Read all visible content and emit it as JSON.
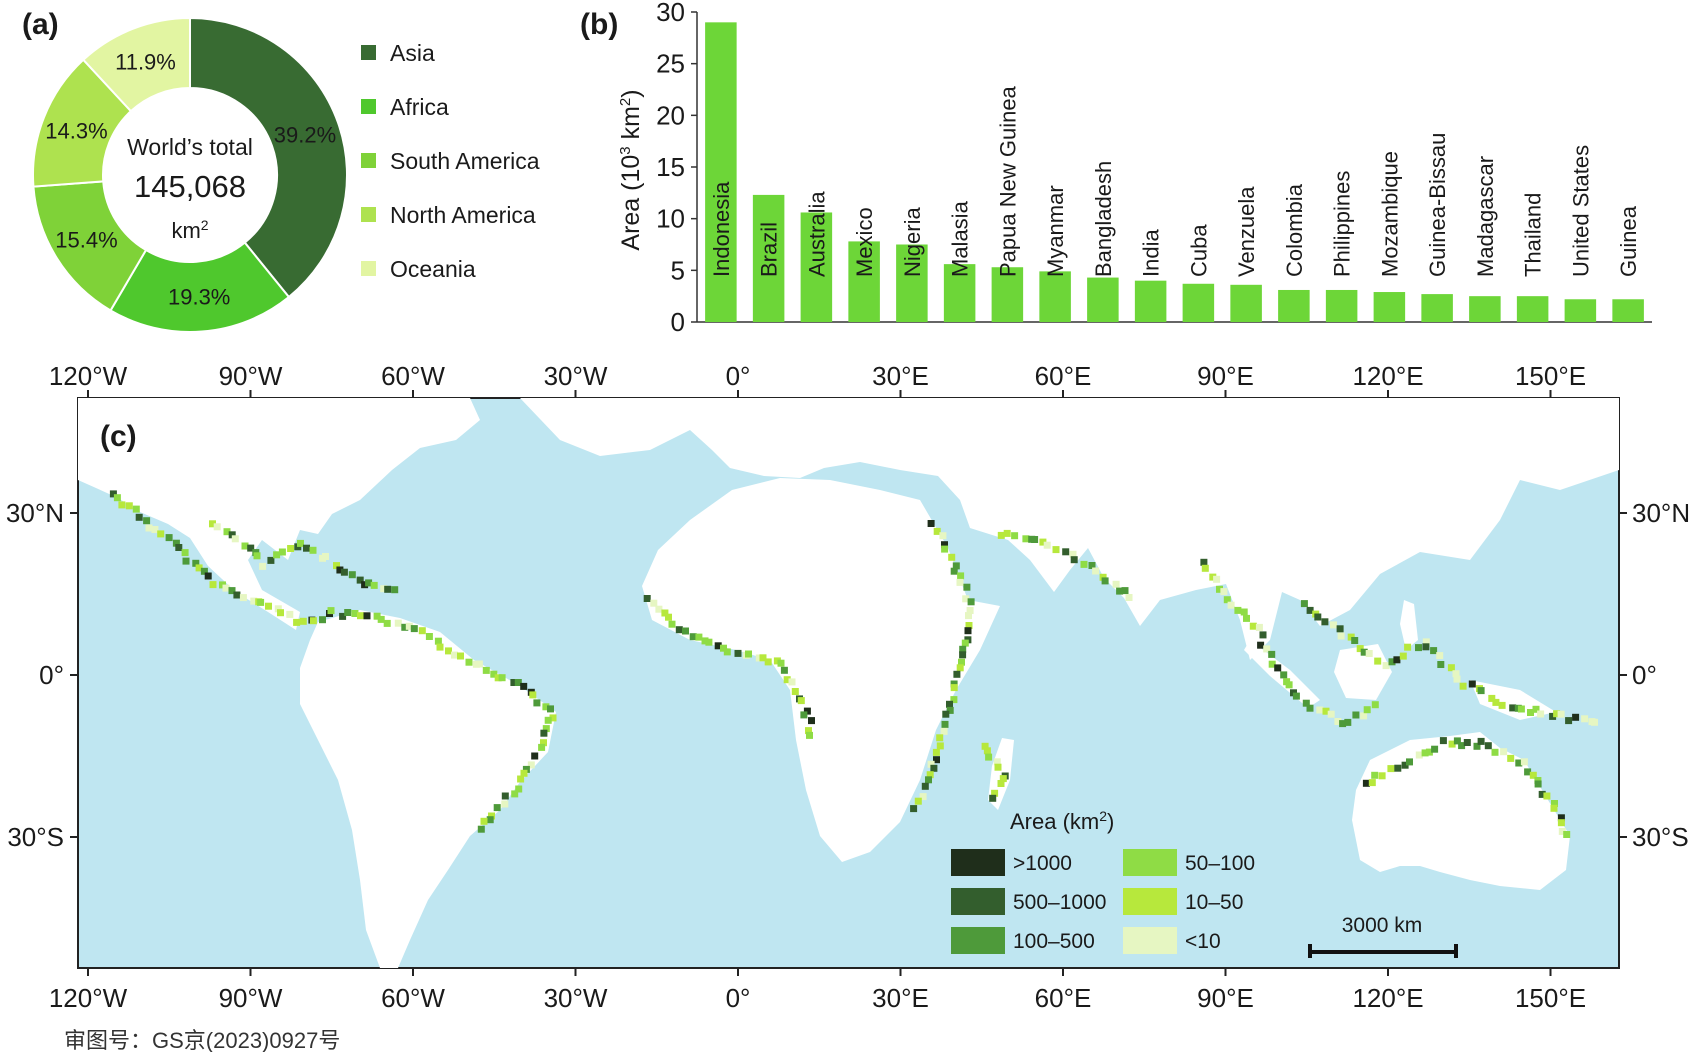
{
  "panels": {
    "a": "(a)",
    "b": "(b)",
    "c": "(c)"
  },
  "chart_data": [
    {
      "type": "pie",
      "variant": "donut",
      "categories": [
        "Asia",
        "Africa",
        "South America",
        "North America",
        "Oceania"
      ],
      "values": [
        39.2,
        19.3,
        15.4,
        14.3,
        11.9
      ],
      "value_labels": [
        "39.2%",
        "19.3%",
        "15.4%",
        "14.3%",
        "11.9%"
      ],
      "colors": [
        "#386b32",
        "#4fc82d",
        "#7fd238",
        "#aee24f",
        "#e2f5a2"
      ],
      "center": {
        "line1": "World’s total",
        "total": "145,068",
        "unit": "km",
        "unit_sup": "2",
        "total_color": "#e0452b"
      },
      "legend": "right"
    },
    {
      "type": "bar",
      "categories": [
        "Indonesia",
        "Brazil",
        "Australia",
        "Mexico",
        "Nigeria",
        "Malasia",
        "Papua New Guinea",
        "Myanmar",
        "Bangladesh",
        "India",
        "Cuba",
        "Venzuela",
        "Colombia",
        "Philippines",
        "Mozambique",
        "Guinea-Bissau",
        "Madagascar",
        "Thailand",
        "United States",
        "Guinea"
      ],
      "values": [
        29.0,
        12.3,
        10.6,
        7.8,
        7.5,
        5.6,
        5.3,
        4.9,
        4.3,
        4.0,
        3.7,
        3.6,
        3.1,
        3.1,
        2.9,
        2.7,
        2.5,
        2.5,
        2.2,
        2.2
      ],
      "ylabel": "Area (10",
      "ylabel_sup": "3",
      "ylabel_mid": " km",
      "ylabel_sup2": "2",
      "ylabel_end": ")",
      "ylim": [
        0,
        30
      ],
      "yticks": [
        "0",
        "5",
        "10",
        "15",
        "20",
        "25",
        "30"
      ],
      "bar_color": "#6dd638"
    },
    {
      "type": "heatmap",
      "title": "",
      "x_ticks": [
        "120°W",
        "90°W",
        "60°W",
        "30°W",
        "0°",
        "30°E",
        "60°E",
        "90°E",
        "120°E",
        "150°E"
      ],
      "y_ticks": [
        "30°N",
        "0°",
        "30°S"
      ],
      "legend_title": "Area (km",
      "legend_title_sup": "2",
      "legend_title_end": ")",
      "legend": [
        {
          "label": ">1000",
          "color": "#1f2e1b"
        },
        {
          "label": "500–1000",
          "color": "#335e2d"
        },
        {
          "label": "100–500",
          "color": "#4e9a3a"
        },
        {
          "label": "50–100",
          "color": "#8fdc45"
        },
        {
          "label": "10–50",
          "color": "#b7e83c"
        },
        {
          "label": "<10",
          "color": "#e6f6c2"
        }
      ],
      "scale_bar": "3000 km",
      "ocean_color": "#bfe6f1"
    }
  ],
  "footnote": "审图号：GS京(2023)0927号"
}
